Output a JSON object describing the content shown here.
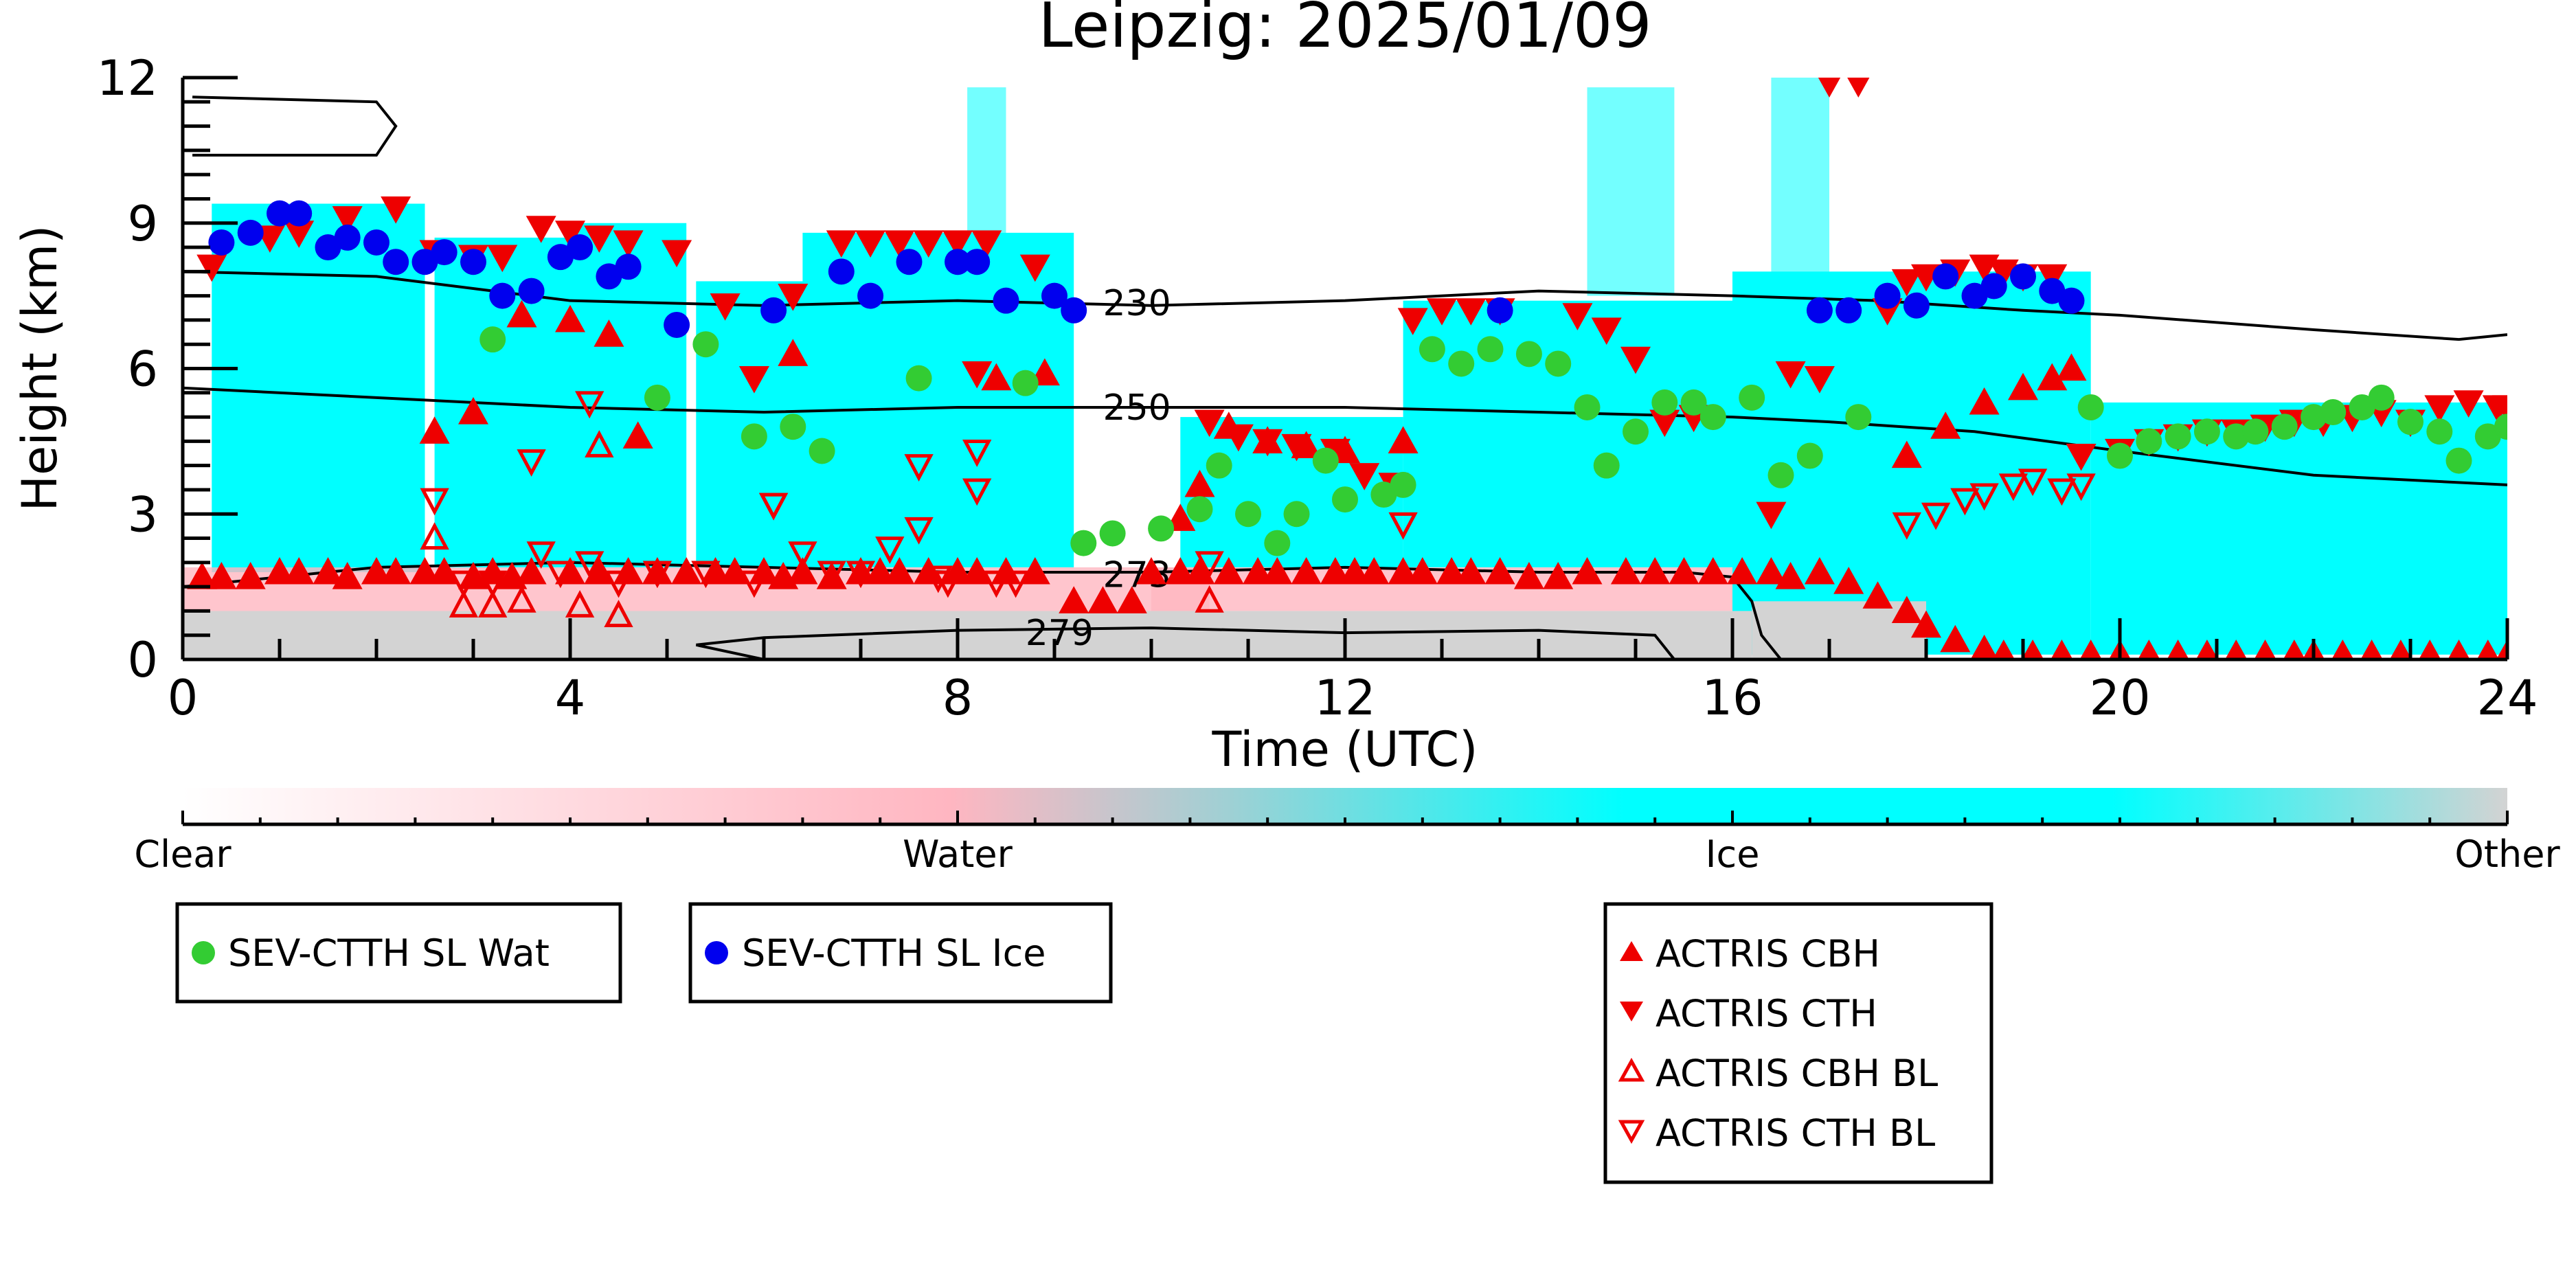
{
  "chart_data": {
    "type": "scatter",
    "title": "Leipzig: 2025/01/09",
    "xlabel": "Time (UTC)",
    "ylabel": "Height (km)",
    "xlim": [
      0,
      24
    ],
    "ylim": [
      0,
      12
    ],
    "xticks": [
      0,
      4,
      8,
      12,
      16,
      20,
      24
    ],
    "yticks": [
      0,
      3,
      6,
      9,
      12
    ],
    "grid": false,
    "background_classification": {
      "description_colors": {
        "Clear": "#ffffff",
        "Water": "#ffb6c1",
        "Ice": "#00ffff",
        "Other": "#d3d3d3"
      },
      "ice_regions": [
        {
          "x": [
            0.3,
            2.5
          ],
          "y": [
            1.8,
            9.4
          ]
        },
        {
          "x": [
            2.6,
            4.0
          ],
          "y": [
            1.9,
            8.7
          ]
        },
        {
          "x": [
            4.0,
            5.2
          ],
          "y": [
            1.9,
            9.0
          ]
        },
        {
          "x": [
            5.3,
            6.9
          ],
          "y": [
            1.9,
            7.8
          ]
        },
        {
          "x": [
            6.4,
            9.2
          ],
          "y": [
            1.9,
            8.8
          ]
        },
        {
          "x": [
            10.3,
            12.6
          ],
          "y": [
            1.9,
            5.0
          ]
        },
        {
          "x": [
            12.6,
            16.2
          ],
          "y": [
            1.9,
            7.4
          ]
        },
        {
          "x": [
            16.0,
            19.7
          ],
          "y": [
            0.1,
            8.0
          ]
        },
        {
          "x": [
            19.7,
            24.0
          ],
          "y": [
            0.1,
            5.3
          ]
        }
      ],
      "ice_streaks": [
        {
          "x": [
            8.1,
            8.5
          ],
          "y": [
            7.0,
            11.8
          ]
        },
        {
          "x": [
            14.5,
            15.4
          ],
          "y": [
            7.5,
            11.8
          ]
        },
        {
          "x": [
            16.4,
            17.0
          ],
          "y": [
            2.0,
            12.0
          ]
        }
      ],
      "other_regions": [
        {
          "x": [
            0.0,
            16.2
          ],
          "y": [
            0.0,
            1.0
          ]
        },
        {
          "x": [
            16.2,
            18.0
          ],
          "y": [
            0.0,
            1.2
          ]
        }
      ],
      "water_regions": [
        {
          "x": [
            0.0,
            10.6
          ],
          "y": [
            0.5,
            1.9
          ]
        },
        {
          "x": [
            10.0,
            16.0
          ],
          "y": [
            1.0,
            1.9
          ]
        }
      ]
    },
    "contours": [
      {
        "label": "230",
        "label_at": [
          9.5,
          7.35
        ],
        "x": [
          0,
          2,
          4,
          6,
          8,
          10,
          12,
          14,
          16,
          17.5,
          19,
          20,
          22,
          23.5,
          24
        ],
        "y": [
          8.0,
          7.9,
          7.4,
          7.3,
          7.4,
          7.3,
          7.4,
          7.6,
          7.5,
          7.4,
          7.2,
          7.1,
          6.8,
          6.6,
          6.7
        ]
      },
      {
        "label": "250",
        "label_at": [
          9.5,
          5.2
        ],
        "x": [
          0,
          2,
          4,
          6,
          8,
          10,
          12,
          14,
          16,
          17,
          18.5,
          20,
          22,
          24
        ],
        "y": [
          5.6,
          5.4,
          5.2,
          5.1,
          5.2,
          5.2,
          5.2,
          5.1,
          5.0,
          4.9,
          4.7,
          4.3,
          3.8,
          3.6
        ]
      },
      {
        "label": "273",
        "label_at": [
          9.5,
          1.75
        ],
        "x": [
          0,
          2,
          4,
          6,
          8,
          10,
          12,
          14,
          15.5,
          16.0,
          16.2,
          16.3,
          16.5
        ],
        "y": [
          1.5,
          1.9,
          2.0,
          1.9,
          1.8,
          1.8,
          1.9,
          1.8,
          1.8,
          1.7,
          1.2,
          0.5,
          0.0
        ]
      },
      {
        "label": "279",
        "label_at": [
          8.7,
          0.55
        ],
        "x": [
          5.3,
          6,
          8,
          10,
          12,
          14,
          15.2,
          15.4,
          6.0,
          5.3
        ],
        "y": [
          0.3,
          0.45,
          0.6,
          0.65,
          0.55,
          0.6,
          0.5,
          0.0,
          0.0,
          0.3
        ]
      },
      {
        "label": "",
        "x": [
          0.1,
          2.0,
          2.2,
          2.0,
          0.1
        ],
        "y": [
          11.6,
          11.5,
          11.0,
          10.4,
          10.4
        ]
      }
    ],
    "series": [
      {
        "name": "SEV-CTTH SL Wat",
        "marker": "circle",
        "color": "#33cc33",
        "x": [
          3.2,
          4.9,
          5.4,
          5.9,
          6.3,
          6.6,
          7.6,
          8.7,
          9.3,
          9.6,
          10.1,
          10.5,
          10.7,
          11.0,
          11.3,
          11.5,
          11.8,
          12.0,
          12.4,
          12.6,
          12.9,
          13.2,
          13.5,
          13.9,
          14.2,
          14.5,
          14.7,
          15.0,
          15.3,
          15.6,
          15.8,
          16.2,
          16.5,
          16.8,
          17.3,
          19.7,
          20.0,
          20.3,
          20.6,
          20.9,
          21.2,
          21.4,
          21.7,
          22.0,
          22.2,
          22.5,
          22.7,
          23.0,
          23.3,
          23.5,
          23.8,
          24.0
        ],
        "y": [
          6.6,
          5.4,
          6.5,
          4.6,
          4.8,
          4.3,
          5.8,
          5.7,
          2.4,
          2.6,
          2.7,
          3.1,
          4.0,
          3.0,
          2.4,
          3.0,
          4.1,
          3.3,
          3.4,
          3.6,
          6.4,
          6.1,
          6.4,
          6.3,
          6.1,
          5.2,
          4.0,
          4.7,
          5.3,
          5.3,
          5.0,
          5.4,
          3.8,
          4.2,
          5.0,
          5.2,
          4.2,
          4.5,
          4.6,
          4.7,
          4.6,
          4.7,
          4.8,
          5.0,
          5.1,
          5.2,
          5.4,
          4.9,
          4.7,
          4.1,
          4.6,
          4.8
        ]
      },
      {
        "name": "SEV-CTTH SL Ice",
        "marker": "circle",
        "color": "#0000ee",
        "x": [
          0.4,
          0.7,
          1.0,
          1.2,
          1.5,
          1.7,
          2.0,
          2.2,
          2.5,
          2.7,
          3.0,
          3.3,
          3.6,
          3.9,
          4.1,
          4.4,
          4.6,
          5.1,
          6.1,
          6.8,
          7.1,
          7.5,
          8.0,
          8.2,
          8.5,
          9.0,
          9.2,
          13.6,
          16.9,
          17.2,
          17.6,
          17.9,
          18.2,
          18.5,
          18.7,
          19.0,
          19.3,
          19.5
        ],
        "y": [
          8.6,
          8.8,
          9.2,
          9.2,
          8.5,
          8.7,
          8.6,
          8.2,
          8.2,
          8.4,
          8.2,
          7.5,
          7.6,
          8.3,
          8.5,
          7.9,
          8.1,
          6.9,
          7.2,
          8.0,
          7.5,
          8.2,
          8.2,
          8.2,
          7.4,
          7.5,
          7.2,
          7.2,
          7.2,
          7.2,
          7.5,
          7.3,
          7.9,
          7.5,
          7.7,
          7.9,
          7.6,
          7.4
        ]
      },
      {
        "name": "ACTRIS CBH",
        "marker": "triangle-up",
        "color": "#ee0000",
        "x": [
          0.2,
          0.4,
          0.7,
          1.0,
          1.2,
          1.5,
          1.7,
          2.0,
          2.2,
          2.5,
          2.7,
          3.0,
          3.2,
          3.4,
          3.6,
          4.0,
          4.3,
          4.6,
          4.9,
          5.2,
          5.5,
          5.7,
          6.0,
          6.2,
          6.4,
          6.7,
          7.0,
          7.2,
          7.4,
          7.7,
          8.0,
          8.2,
          8.5,
          8.8,
          9.2,
          9.5,
          9.8,
          10.0,
          10.3,
          10.5,
          10.8,
          11.1,
          11.3,
          11.6,
          11.9,
          12.1,
          12.3,
          12.6,
          12.8,
          13.1,
          13.3,
          13.6,
          13.9,
          14.2,
          14.5,
          14.9,
          15.2,
          15.5,
          15.8,
          16.1,
          16.4,
          16.6,
          16.9,
          17.2,
          17.5,
          17.8,
          18.0,
          18.3,
          18.6,
          18.8,
          19.1,
          19.4,
          19.7,
          20.0,
          20.3,
          20.6,
          20.9,
          21.2,
          21.5,
          21.8,
          22.0,
          22.3,
          22.6,
          22.9,
          23.2,
          23.5,
          23.8,
          24.0,
          2.6,
          3.0,
          3.5,
          4.0,
          4.4,
          4.7,
          6.3,
          8.4,
          8.9,
          10.3,
          10.5,
          17.8,
          18.2,
          18.6,
          19.0,
          19.3,
          19.5,
          12.6,
          10.8,
          11.2,
          11.6,
          12.0
        ],
        "y": [
          1.7,
          1.7,
          1.7,
          1.8,
          1.8,
          1.8,
          1.7,
          1.8,
          1.8,
          1.8,
          1.8,
          1.7,
          1.8,
          1.7,
          1.8,
          1.8,
          1.8,
          1.8,
          1.8,
          1.8,
          1.8,
          1.8,
          1.8,
          1.7,
          1.8,
          1.7,
          1.8,
          1.8,
          1.8,
          1.8,
          1.8,
          1.8,
          1.8,
          1.8,
          1.2,
          1.2,
          1.2,
          1.8,
          1.8,
          1.8,
          1.8,
          1.8,
          1.8,
          1.8,
          1.8,
          1.8,
          1.8,
          1.8,
          1.8,
          1.8,
          1.8,
          1.8,
          1.7,
          1.7,
          1.8,
          1.8,
          1.8,
          1.8,
          1.8,
          1.8,
          1.8,
          1.7,
          1.8,
          1.6,
          1.3,
          1.0,
          0.7,
          0.4,
          0.2,
          0.1,
          0.1,
          0.1,
          0.1,
          0.1,
          0.1,
          0.1,
          0.1,
          0.1,
          0.1,
          0.1,
          0.1,
          0.1,
          0.1,
          0.1,
          0.1,
          0.1,
          0.1,
          0.1,
          4.7,
          5.1,
          7.1,
          7.0,
          6.7,
          4.6,
          6.3,
          5.8,
          5.9,
          2.9,
          3.6,
          4.2,
          4.8,
          5.3,
          5.6,
          5.8,
          6.0,
          4.5,
          4.8,
          4.5,
          4.4,
          4.3
        ]
      },
      {
        "name": "ACTRIS CTH",
        "marker": "triangle-down",
        "color": "#ee0000",
        "x": [
          0.3,
          0.9,
          1.2,
          1.7,
          2.2,
          2.6,
          3.0,
          3.3,
          3.7,
          4.0,
          4.3,
          4.6,
          5.1,
          5.6,
          5.9,
          6.3,
          6.8,
          7.1,
          7.4,
          7.7,
          8.0,
          8.3,
          8.8,
          12.7,
          13.0,
          13.3,
          13.6,
          14.4,
          14.7,
          15.0,
          15.3,
          15.6,
          16.4,
          17.0,
          17.3,
          17.6,
          17.8,
          18.0,
          18.3,
          18.6,
          18.8,
          19.0,
          19.3,
          19.6,
          20.0,
          20.3,
          20.6,
          20.9,
          21.2,
          21.5,
          21.8,
          22.1,
          22.4,
          22.7,
          23.0,
          23.3,
          23.6,
          23.9,
          24.0,
          16.6,
          16.9,
          10.6,
          10.9,
          11.2,
          11.5,
          11.9,
          12.2,
          12.5,
          8.2
        ],
        "y": [
          8.1,
          8.7,
          8.8,
          9.1,
          9.3,
          8.4,
          8.3,
          8.3,
          8.9,
          8.8,
          8.7,
          8.6,
          8.4,
          7.3,
          5.8,
          7.5,
          8.6,
          8.6,
          8.6,
          8.6,
          8.6,
          8.6,
          8.1,
          7.0,
          7.2,
          7.2,
          7.2,
          7.1,
          6.8,
          6.2,
          4.9,
          5.0,
          3.0,
          11.9,
          11.9,
          7.2,
          7.8,
          7.9,
          8.0,
          8.1,
          8.0,
          7.9,
          7.9,
          4.2,
          4.3,
          4.5,
          4.6,
          4.7,
          4.7,
          4.8,
          4.9,
          4.9,
          5.0,
          5.1,
          4.9,
          5.2,
          5.3,
          5.2,
          5.2,
          5.9,
          5.8,
          4.9,
          4.6,
          4.5,
          4.4,
          4.3,
          3.8,
          3.6,
          5.9
        ],
        "note_pairs": []
      },
      {
        "name": "ACTRIS CBH BL",
        "marker": "triangle-up-open",
        "color": "#ee0000",
        "x": [
          2.6,
          2.9,
          3.2,
          3.5,
          4.1,
          4.5,
          10.6,
          4.3
        ],
        "y": [
          2.5,
          1.1,
          1.1,
          1.2,
          1.1,
          0.9,
          1.2,
          4.4
        ]
      },
      {
        "name": "ACTRIS CTH BL",
        "marker": "triangle-down-open",
        "color": "#ee0000",
        "x": [
          2.6,
          2.9,
          3.2,
          3.7,
          3.9,
          4.2,
          4.5,
          4.9,
          5.4,
          5.9,
          6.1,
          6.4,
          6.7,
          7.0,
          7.3,
          7.6,
          7.9,
          8.2,
          8.4,
          8.6,
          10.6,
          12.6,
          3.6,
          4.2,
          6.1,
          7.6,
          8.2,
          7.8,
          17.8,
          18.1,
          18.4,
          18.6,
          18.9,
          19.1,
          19.4,
          19.6
        ],
        "y": [
          3.3,
          1.6,
          1.6,
          2.2,
          1.8,
          2.0,
          1.6,
          1.8,
          1.8,
          1.6,
          3.2,
          2.2,
          1.8,
          1.8,
          2.3,
          2.7,
          1.6,
          3.5,
          1.6,
          1.6,
          2.0,
          2.8,
          4.1,
          5.3,
          3.2,
          4.0,
          4.3,
          1.7,
          2.8,
          3.0,
          3.3,
          3.4,
          3.6,
          3.7,
          3.5,
          3.6
        ]
      }
    ],
    "colorbar": {
      "labels": [
        "Clear",
        "Water",
        "Ice",
        "Other"
      ],
      "stops": [
        {
          "at": 0.0,
          "color": "#ffffff"
        },
        {
          "at": 0.33,
          "color": "#ffb6c1"
        },
        {
          "at": 0.67,
          "color": "#00ffff"
        },
        {
          "at": 0.83,
          "color": "#00ffff"
        },
        {
          "at": 1.0,
          "color": "#d3d3d3"
        }
      ]
    },
    "legends": [
      {
        "entries": [
          "SEV-CTTH SL Wat"
        ]
      },
      {
        "entries": [
          "SEV-CTTH SL Ice"
        ]
      },
      {
        "entries": [
          "ACTRIS CBH",
          "ACTRIS CTH",
          "ACTRIS CBH BL",
          "ACTRIS CTH BL"
        ]
      }
    ]
  }
}
